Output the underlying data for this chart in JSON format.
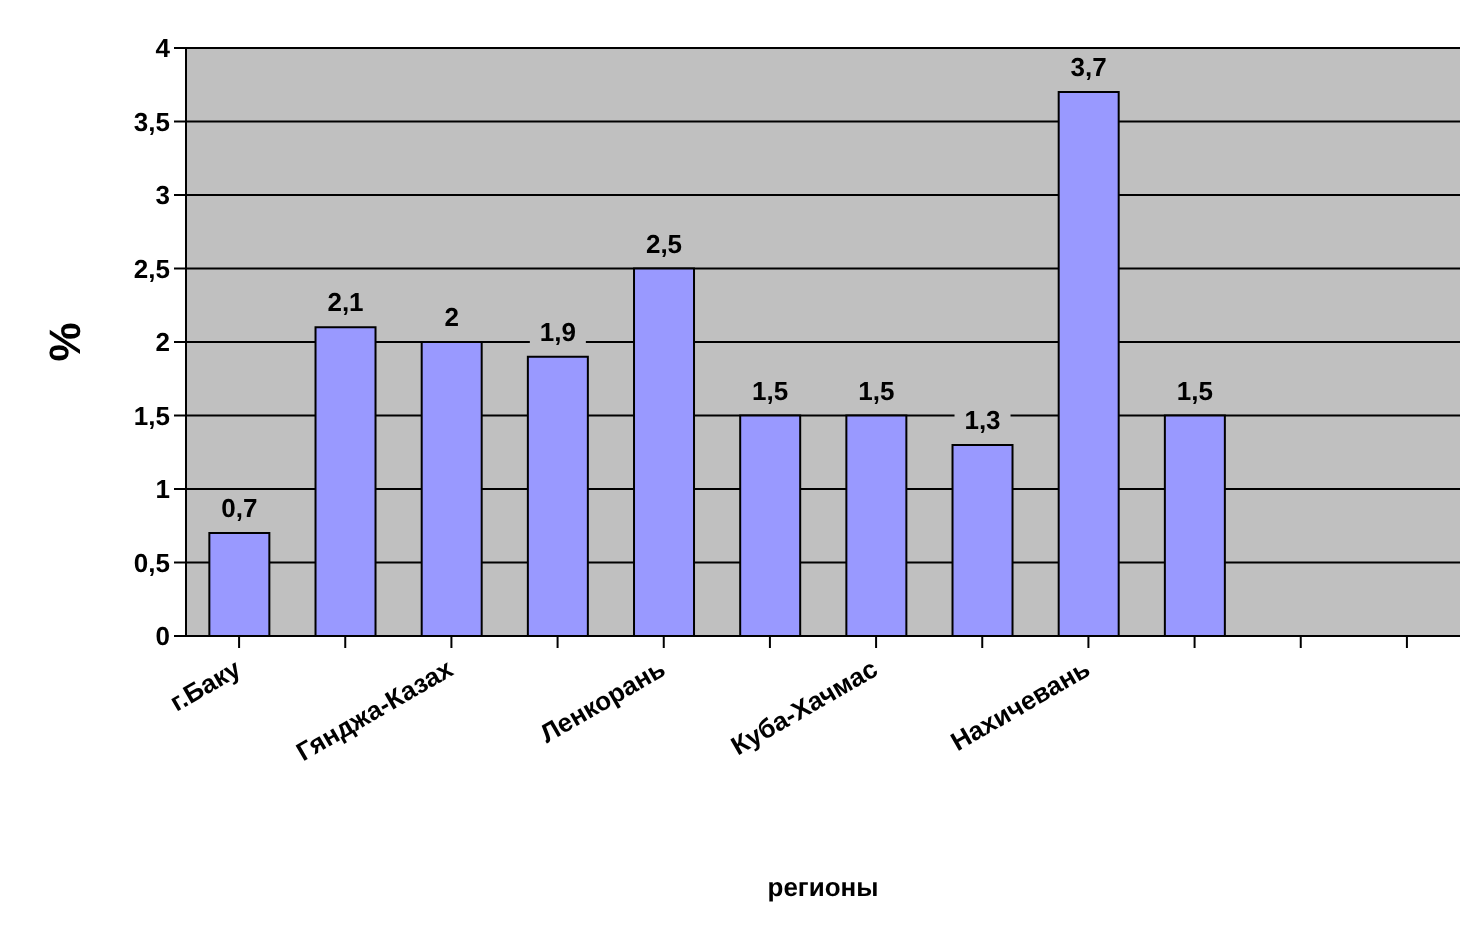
{
  "chart_data": {
    "type": "bar",
    "xlabel": "регионы",
    "ylabel": "%",
    "categories": [
      "г.Баку",
      null,
      "Гянджа-Казах",
      null,
      "Ленкорань",
      null,
      "Куба-Хачмас",
      null,
      "Нахичевань",
      null,
      null,
      null
    ],
    "values": [
      0.7,
      2.1,
      2,
      1.9,
      2.5,
      1.5,
      1.5,
      1.3,
      3.7,
      1.5,
      null,
      null
    ],
    "value_labels": [
      "0,7",
      "2,1",
      "2",
      "1,9",
      "2,5",
      "1,5",
      "1,5",
      "1,3",
      "3,7",
      "1,5",
      null,
      null
    ],
    "color": "#9999ff",
    "ylim": [
      0,
      4
    ],
    "yticks": [
      0,
      {
        "value": 0.5,
        "label": "0,5"
      },
      1,
      {
        "value": 1.5,
        "label": "1,5"
      },
      2,
      {
        "value": 2.5,
        "label": "2,5"
      },
      3,
      {
        "value": 3.5,
        "label": "3,5"
      },
      4
    ],
    "grid": "y",
    "legend": false
  }
}
